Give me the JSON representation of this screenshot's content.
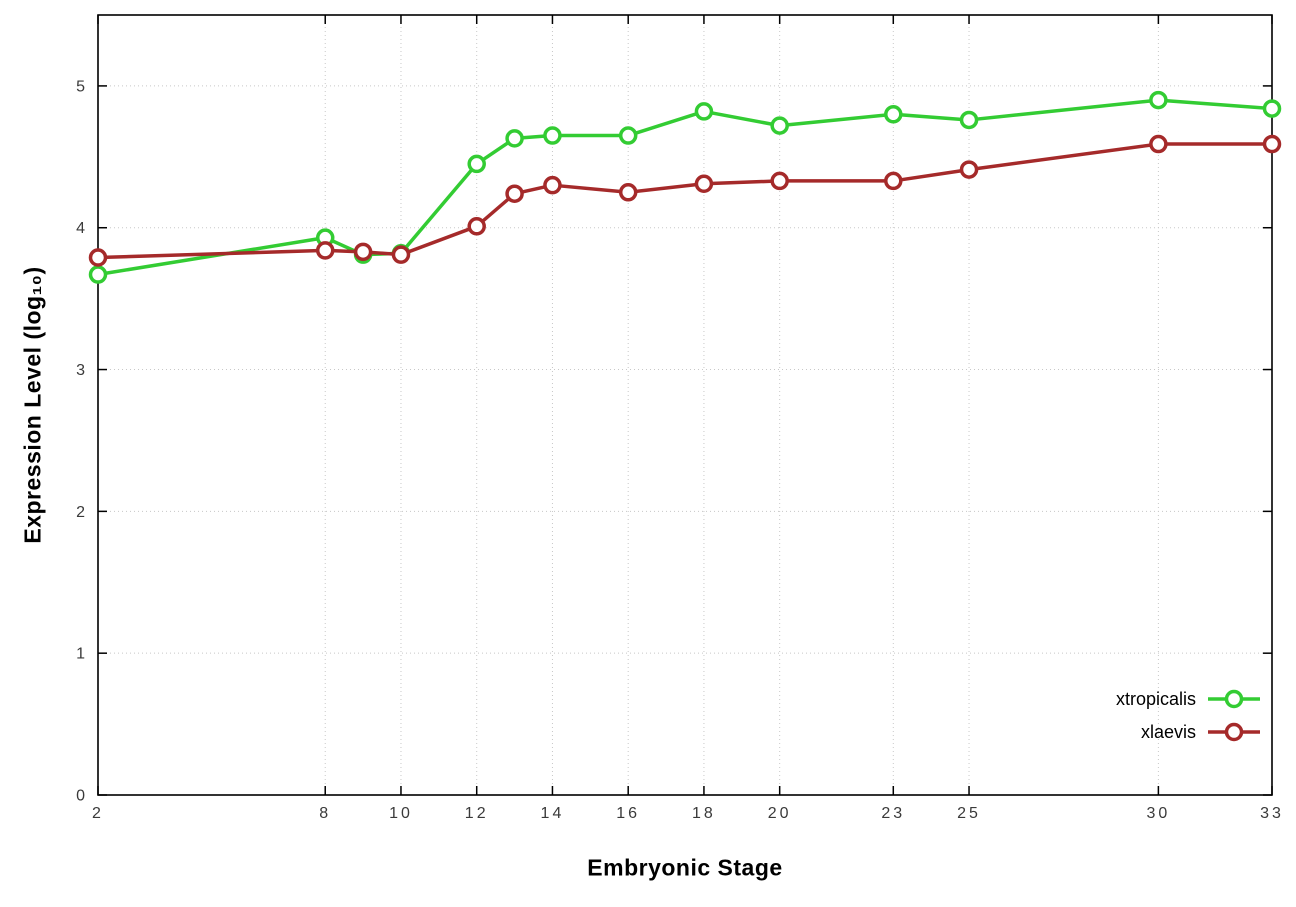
{
  "chart_data": {
    "type": "line",
    "title": "",
    "xlabel": "Embryonic Stage",
    "ylabel": "Expression Level (log₁₀)",
    "x": [
      2,
      8,
      9,
      10,
      12,
      13,
      14,
      16,
      18,
      20,
      23,
      25,
      30,
      33
    ],
    "series": [
      {
        "name": "xtropicalis",
        "color": "#33cc33",
        "values": [
          3.67,
          3.93,
          3.81,
          3.82,
          4.45,
          4.63,
          4.65,
          4.65,
          4.82,
          4.72,
          4.8,
          4.76,
          4.9,
          4.84
        ]
      },
      {
        "name": "xlaevis",
        "color": "#a52a2a",
        "values": [
          3.79,
          3.84,
          3.83,
          3.81,
          4.01,
          4.24,
          4.3,
          4.25,
          4.31,
          4.33,
          4.33,
          4.41,
          4.59,
          4.59
        ]
      }
    ],
    "xticks": [
      2,
      8,
      10,
      12,
      14,
      16,
      18,
      20,
      23,
      25,
      30,
      33
    ],
    "yticks": [
      0,
      1,
      2,
      3,
      4,
      5
    ],
    "xlim": [
      2,
      33
    ],
    "ylim": [
      0,
      5.5
    ],
    "grid": true,
    "legend_position": "inside bottom-right",
    "style": {
      "grid_color": "#c8c8c8",
      "border_color": "#000000",
      "tick_label_color": "#3a3a3a",
      "marker": "open-circle"
    }
  }
}
